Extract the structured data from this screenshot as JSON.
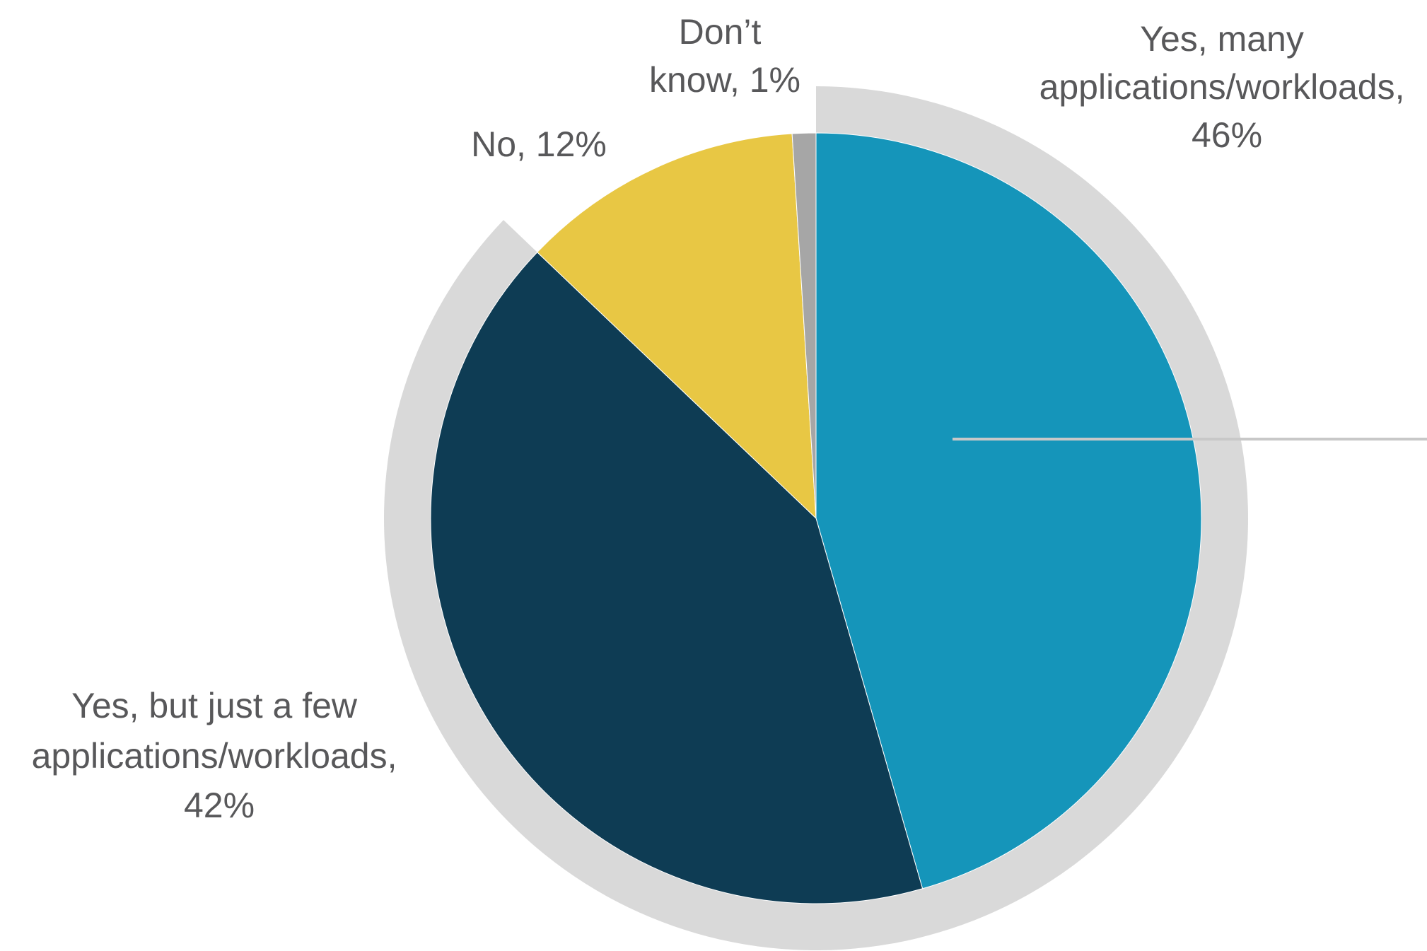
{
  "chart_data": {
    "type": "pie",
    "start_angle_deg": 0,
    "direction": "clockwise",
    "slices": [
      {
        "label": "Yes, many applications/workloads",
        "value": 46,
        "display": [
          "Yes, many",
          "applications/workloads,",
          "46%"
        ],
        "color": "#1595ba",
        "outer_ring": true
      },
      {
        "label": "Yes, but just a few applications/workloads",
        "value": 42,
        "display": [
          "Yes, but just a few",
          "applications/workloads,",
          "42%"
        ],
        "color": "#0e3c54",
        "outer_ring": true
      },
      {
        "label": "No",
        "value": 12,
        "display": [
          "No, 12%"
        ],
        "color": "#e8c744",
        "outer_ring": false
      },
      {
        "label": "Don’t know",
        "value": 1,
        "display": [
          "Don’t",
          "know, 1%"
        ],
        "color": "#a6a6a6",
        "outer_ring": false
      }
    ],
    "outer_ring_color": "#d9d9d9",
    "label_color": "#58585a",
    "leader_line_color": "#c8c8c8"
  }
}
